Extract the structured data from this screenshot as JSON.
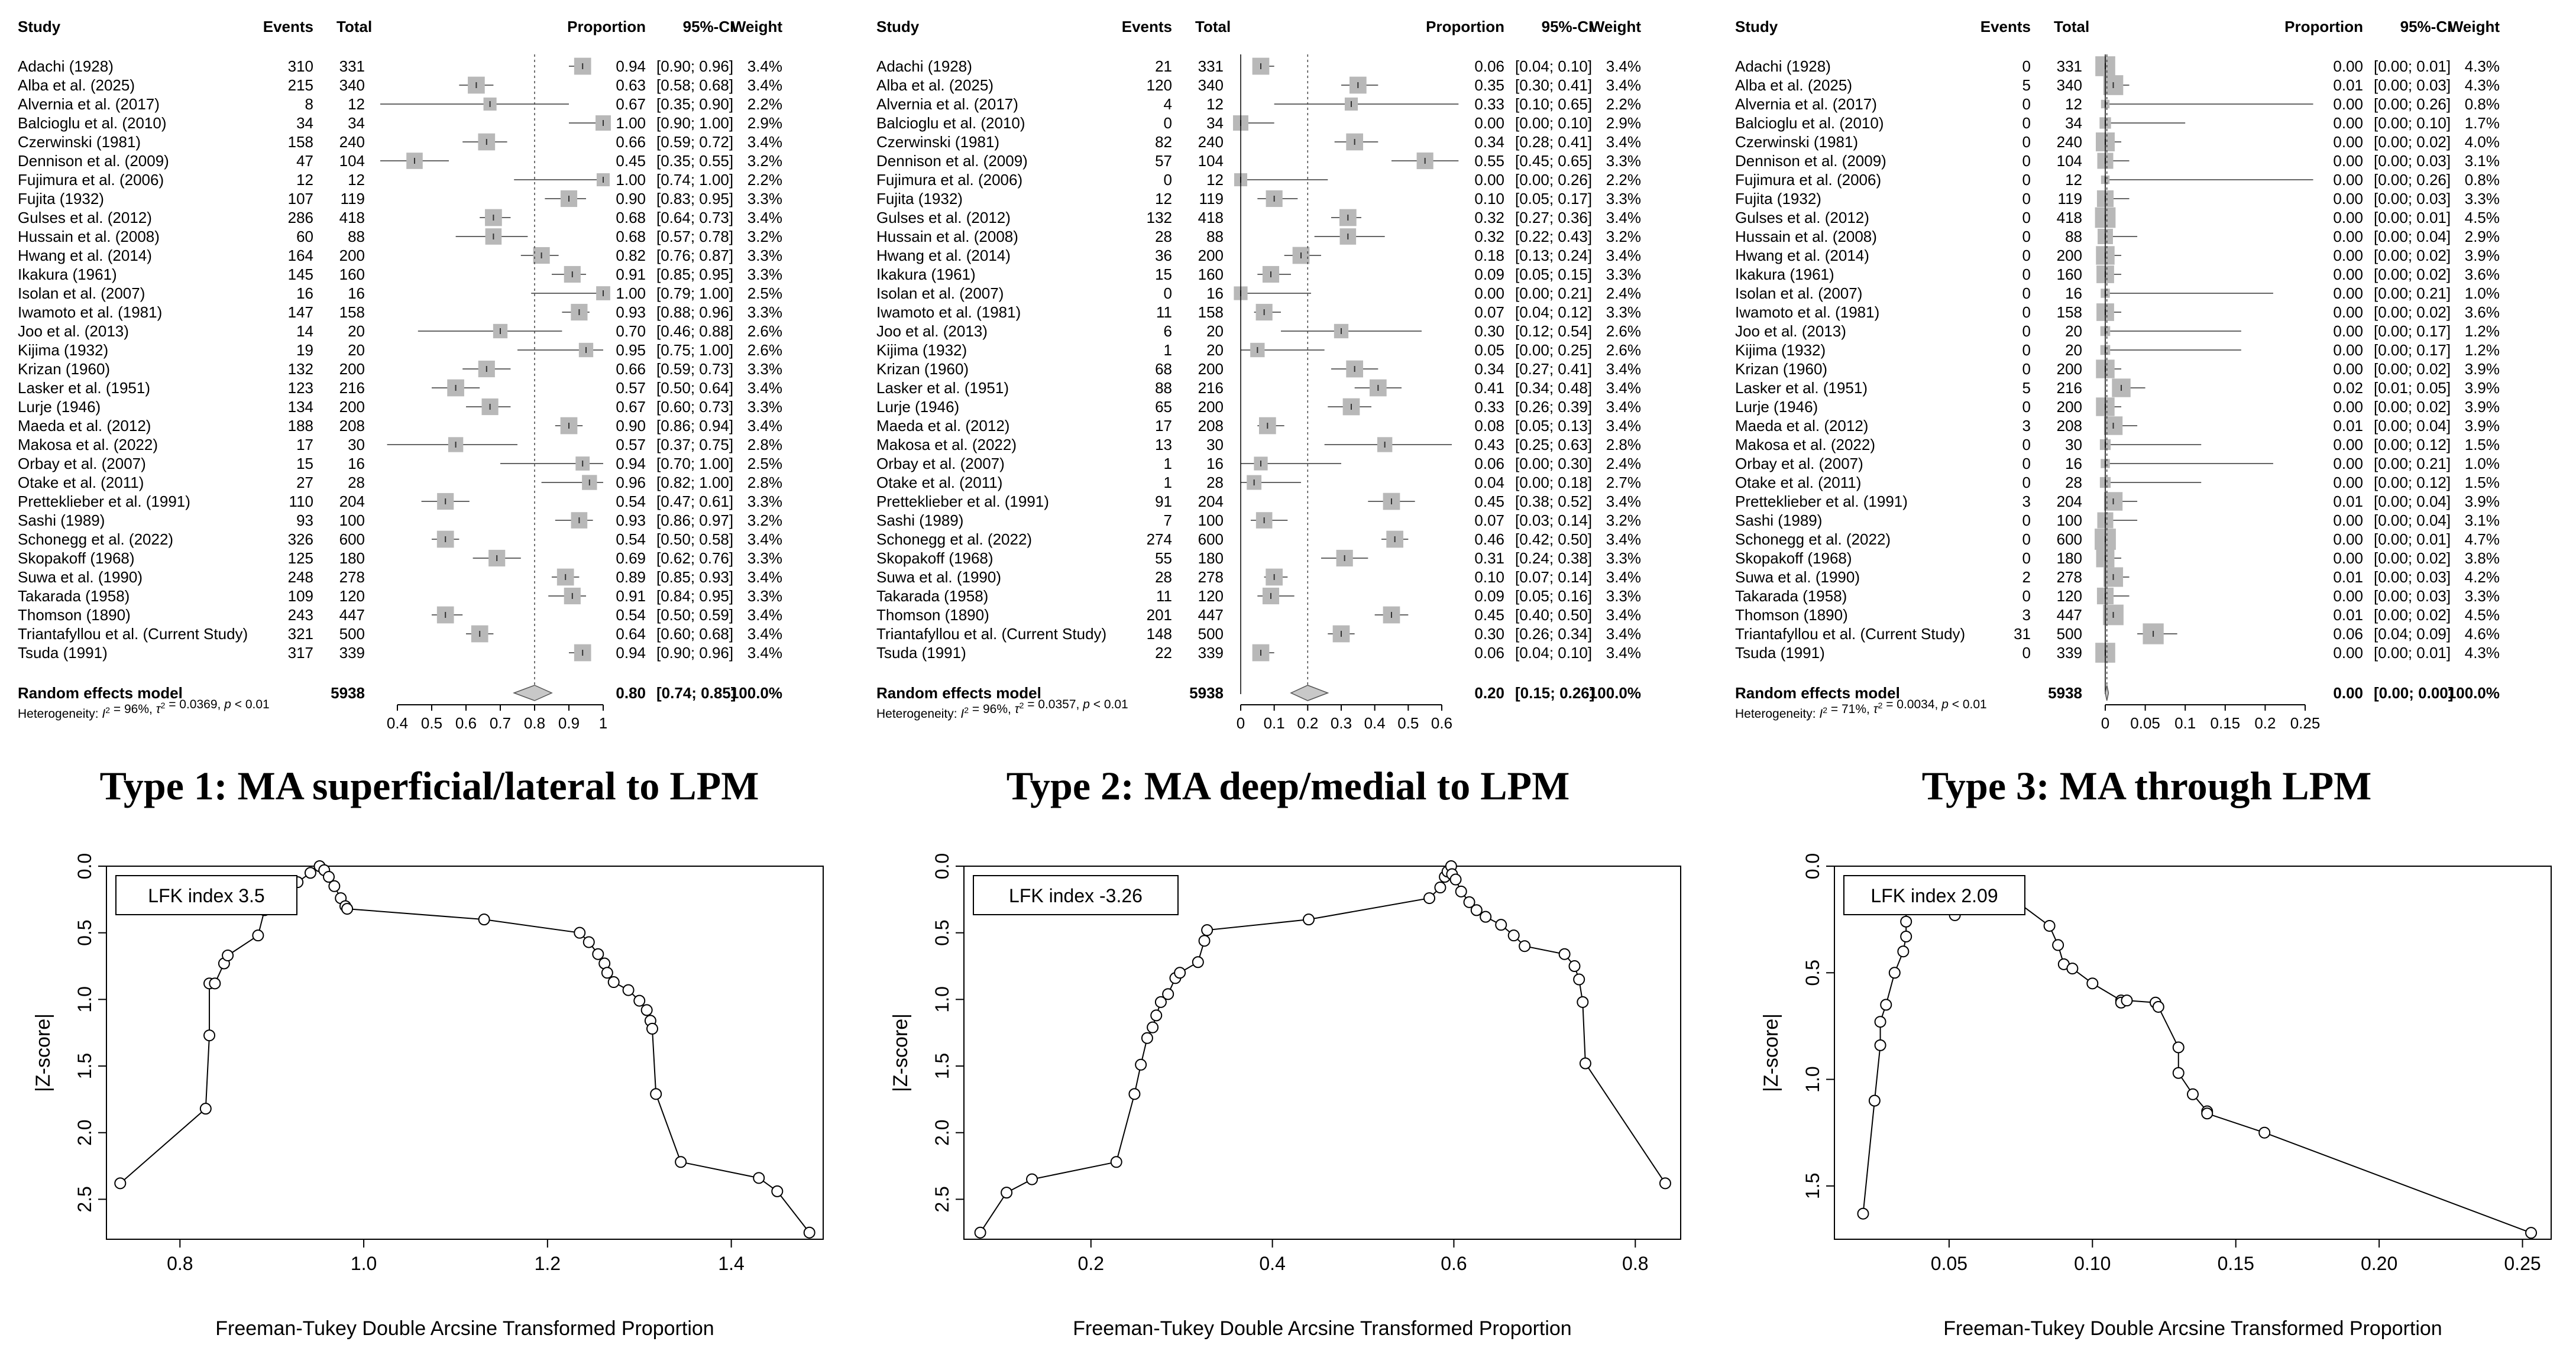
{
  "captions": [
    "Type 1: MA superficial/lateral to LPM",
    "Type 2: MA deep/medial to LPM",
    "Type 3: MA through LPM"
  ],
  "chart_data": [
    {
      "type": "forest",
      "headers": {
        "study": "Study",
        "events": "Events",
        "total": "Total",
        "proportion": "Proportion",
        "ci": "95%-CI",
        "weight": "Weight"
      },
      "studies": [
        "Adachi (1928)",
        "Alba et al. (2025)",
        "Alvernia et al. (2017)",
        "Balcioglu et al. (2010)",
        "Czerwinski (1981)",
        "Dennison et al. (2009)",
        "Fujimura et al. (2006)",
        "Fujita (1932)",
        "Gulses et al. (2012)",
        "Hussain et al. (2008)",
        "Hwang et al. (2014)",
        "Ikakura (1961)",
        "Isolan et al. (2007)",
        "Iwamoto et al. (1981)",
        "Joo et al. (2013)",
        "Kijima (1932)",
        "Krizan (1960)",
        "Lasker et al. (1951)",
        "Lurje (1946)",
        "Maeda et al. (2012)",
        "Makosa et al. (2022)",
        "Orbay et al. (2007)",
        "Otake et al. (2011)",
        "Pretteklieber et al. (1991)",
        "Sashi (1989)",
        "Schonegg et al. (2022)",
        "Skopakoff (1968)",
        "Suwa et al. (1990)",
        "Takarada (1958)",
        "Thomson (1890)",
        "Triantafyllou et al. (Current Study)",
        "Tsuda (1991)"
      ],
      "events": [
        "310",
        "215",
        "8",
        "34",
        "158",
        "47",
        "12",
        "107",
        "286",
        "60",
        "164",
        "145",
        "16",
        "147",
        "14",
        "19",
        "132",
        "123",
        "134",
        "188",
        "17",
        "15",
        "27",
        "110",
        "93",
        "326",
        "125",
        "248",
        "109",
        "243",
        "321",
        "317"
      ],
      "totals": [
        "331",
        "340",
        "12",
        "34",
        "240",
        "104",
        "12",
        "119",
        "418",
        "88",
        "200",
        "160",
        "16",
        "158",
        "20",
        "20",
        "200",
        "216",
        "200",
        "208",
        "30",
        "16",
        "28",
        "204",
        "100",
        "600",
        "180",
        "278",
        "120",
        "447",
        "500",
        "339"
      ],
      "props": [
        "0.94",
        "0.63",
        "0.67",
        "1.00",
        "0.66",
        "0.45",
        "1.00",
        "0.90",
        "0.68",
        "0.68",
        "0.82",
        "0.91",
        "1.00",
        "0.93",
        "0.70",
        "0.95",
        "0.66",
        "0.57",
        "0.67",
        "0.90",
        "0.57",
        "0.94",
        "0.96",
        "0.54",
        "0.93",
        "0.54",
        "0.69",
        "0.89",
        "0.91",
        "0.54",
        "0.64",
        "0.94"
      ],
      "cis": [
        "[0.90; 0.96]",
        "[0.58; 0.68]",
        "[0.35; 0.90]",
        "[0.90; 1.00]",
        "[0.59; 0.72]",
        "[0.35; 0.55]",
        "[0.74; 1.00]",
        "[0.83; 0.95]",
        "[0.64; 0.73]",
        "[0.57; 0.78]",
        "[0.76; 0.87]",
        "[0.85; 0.95]",
        "[0.79; 1.00]",
        "[0.88; 0.96]",
        "[0.46; 0.88]",
        "[0.75; 1.00]",
        "[0.59; 0.73]",
        "[0.50; 0.64]",
        "[0.60; 0.73]",
        "[0.86; 0.94]",
        "[0.37; 0.75]",
        "[0.70; 1.00]",
        "[0.82; 1.00]",
        "[0.47; 0.61]",
        "[0.86; 0.97]",
        "[0.50; 0.58]",
        "[0.62; 0.76]",
        "[0.85; 0.93]",
        "[0.84; 0.95]",
        "[0.50; 0.59]",
        "[0.60; 0.68]",
        "[0.90; 0.96]"
      ],
      "weights": [
        "3.4%",
        "3.4%",
        "2.2%",
        "2.9%",
        "3.4%",
        "3.2%",
        "2.2%",
        "3.3%",
        "3.4%",
        "3.2%",
        "3.3%",
        "3.3%",
        "2.5%",
        "3.3%",
        "2.6%",
        "2.6%",
        "3.3%",
        "3.4%",
        "3.3%",
        "3.4%",
        "2.8%",
        "2.5%",
        "2.8%",
        "3.3%",
        "3.2%",
        "3.4%",
        "3.3%",
        "3.4%",
        "3.3%",
        "3.4%",
        "3.4%",
        "3.4%"
      ],
      "pooled": {
        "label": "Random effects model",
        "total": "5938",
        "prop": "0.80",
        "ci": "[0.74; 0.85]",
        "weight": "100.0%",
        "value": 0.8,
        "lo": 0.74,
        "hi": 0.85
      },
      "heterogeneity": {
        "prefix": "Heterogeneity:",
        "i2": "= 96%,",
        "tau2": "= 0.0369,",
        "p": "< 0.01"
      },
      "axis": {
        "min": 0.4,
        "max": 1,
        "ticks": [
          "0.4",
          "0.5",
          "0.6",
          "0.7",
          "0.8",
          "0.9",
          "1"
        ]
      }
    },
    {
      "type": "forest",
      "headers": {
        "study": "Study",
        "events": "Events",
        "total": "Total",
        "proportion": "Proportion",
        "ci": "95%-CI",
        "weight": "Weight"
      },
      "studies": [
        "Adachi (1928)",
        "Alba et al. (2025)",
        "Alvernia et al. (2017)",
        "Balcioglu et al. (2010)",
        "Czerwinski (1981)",
        "Dennison et al. (2009)",
        "Fujimura et al. (2006)",
        "Fujita (1932)",
        "Gulses et al. (2012)",
        "Hussain et al. (2008)",
        "Hwang et al. (2014)",
        "Ikakura (1961)",
        "Isolan et al. (2007)",
        "Iwamoto et al. (1981)",
        "Joo et al. (2013)",
        "Kijima (1932)",
        "Krizan (1960)",
        "Lasker et al. (1951)",
        "Lurje (1946)",
        "Maeda et al. (2012)",
        "Makosa et al. (2022)",
        "Orbay et al. (2007)",
        "Otake et al. (2011)",
        "Pretteklieber et al. (1991)",
        "Sashi (1989)",
        "Schonegg et al. (2022)",
        "Skopakoff (1968)",
        "Suwa et al. (1990)",
        "Takarada (1958)",
        "Thomson (1890)",
        "Triantafyllou et al. (Current Study)",
        "Tsuda (1991)"
      ],
      "events": [
        "21",
        "120",
        "4",
        "0",
        "82",
        "57",
        "0",
        "12",
        "132",
        "28",
        "36",
        "15",
        "0",
        "11",
        "6",
        "1",
        "68",
        "88",
        "65",
        "17",
        "13",
        "1",
        "1",
        "91",
        "7",
        "274",
        "55",
        "28",
        "11",
        "201",
        "148",
        "22"
      ],
      "totals": [
        "331",
        "340",
        "12",
        "34",
        "240",
        "104",
        "12",
        "119",
        "418",
        "88",
        "200",
        "160",
        "16",
        "158",
        "20",
        "20",
        "200",
        "216",
        "200",
        "208",
        "30",
        "16",
        "28",
        "204",
        "100",
        "600",
        "180",
        "278",
        "120",
        "447",
        "500",
        "339"
      ],
      "props": [
        "0.06",
        "0.35",
        "0.33",
        "0.00",
        "0.34",
        "0.55",
        "0.00",
        "0.10",
        "0.32",
        "0.32",
        "0.18",
        "0.09",
        "0.00",
        "0.07",
        "0.30",
        "0.05",
        "0.34",
        "0.41",
        "0.33",
        "0.08",
        "0.43",
        "0.06",
        "0.04",
        "0.45",
        "0.07",
        "0.46",
        "0.31",
        "0.10",
        "0.09",
        "0.45",
        "0.30",
        "0.06"
      ],
      "cis": [
        "[0.04; 0.10]",
        "[0.30; 0.41]",
        "[0.10; 0.65]",
        "[0.00; 0.10]",
        "[0.28; 0.41]",
        "[0.45; 0.65]",
        "[0.00; 0.26]",
        "[0.05; 0.17]",
        "[0.27; 0.36]",
        "[0.22; 0.43]",
        "[0.13; 0.24]",
        "[0.05; 0.15]",
        "[0.00; 0.21]",
        "[0.04; 0.12]",
        "[0.12; 0.54]",
        "[0.00; 0.25]",
        "[0.27; 0.41]",
        "[0.34; 0.48]",
        "[0.26; 0.39]",
        "[0.05; 0.13]",
        "[0.25; 0.63]",
        "[0.00; 0.30]",
        "[0.00; 0.18]",
        "[0.38; 0.52]",
        "[0.03; 0.14]",
        "[0.42; 0.50]",
        "[0.24; 0.38]",
        "[0.07; 0.14]",
        "[0.05; 0.16]",
        "[0.40; 0.50]",
        "[0.26; 0.34]",
        "[0.04; 0.10]"
      ],
      "weights": [
        "3.4%",
        "3.4%",
        "2.2%",
        "2.9%",
        "3.4%",
        "3.3%",
        "2.2%",
        "3.3%",
        "3.4%",
        "3.2%",
        "3.4%",
        "3.3%",
        "2.4%",
        "3.3%",
        "2.6%",
        "2.6%",
        "3.4%",
        "3.4%",
        "3.4%",
        "3.4%",
        "2.8%",
        "2.4%",
        "2.7%",
        "3.4%",
        "3.2%",
        "3.4%",
        "3.3%",
        "3.4%",
        "3.3%",
        "3.4%",
        "3.4%",
        "3.4%"
      ],
      "pooled": {
        "label": "Random effects model",
        "total": "5938",
        "prop": "0.20",
        "ci": "[0.15; 0.26]",
        "weight": "100.0%",
        "value": 0.2,
        "lo": 0.15,
        "hi": 0.26
      },
      "heterogeneity": {
        "prefix": "Heterogeneity:",
        "i2": "= 96%,",
        "tau2": "= 0.0357,",
        "p": "< 0.01"
      },
      "axis": {
        "min": 0,
        "max": 0.6,
        "ticks": [
          "0",
          "0.1",
          "0.2",
          "0.3",
          "0.4",
          "0.5",
          "0.6"
        ]
      }
    },
    {
      "type": "forest",
      "headers": {
        "study": "Study",
        "events": "Events",
        "total": "Total",
        "proportion": "Proportion",
        "ci": "95%-CI",
        "weight": "Weight"
      },
      "studies": [
        "Adachi (1928)",
        "Alba et al. (2025)",
        "Alvernia et al. (2017)",
        "Balcioglu et al. (2010)",
        "Czerwinski (1981)",
        "Dennison et al. (2009)",
        "Fujimura et al. (2006)",
        "Fujita (1932)",
        "Gulses et al. (2012)",
        "Hussain et al. (2008)",
        "Hwang et al. (2014)",
        "Ikakura (1961)",
        "Isolan et al. (2007)",
        "Iwamoto et al. (1981)",
        "Joo et al. (2013)",
        "Kijima (1932)",
        "Krizan (1960)",
        "Lasker et al. (1951)",
        "Lurje (1946)",
        "Maeda et al. (2012)",
        "Makosa et al. (2022)",
        "Orbay et al. (2007)",
        "Otake et al. (2011)",
        "Pretteklieber et al. (1991)",
        "Sashi (1989)",
        "Schonegg et al. (2022)",
        "Skopakoff (1968)",
        "Suwa et al. (1990)",
        "Takarada (1958)",
        "Thomson (1890)",
        "Triantafyllou et al. (Current Study)",
        "Tsuda (1991)"
      ],
      "events": [
        "0",
        "5",
        "0",
        "0",
        "0",
        "0",
        "0",
        "0",
        "0",
        "0",
        "0",
        "0",
        "0",
        "0",
        "0",
        "0",
        "0",
        "5",
        "0",
        "3",
        "0",
        "0",
        "0",
        "3",
        "0",
        "0",
        "0",
        "2",
        "0",
        "3",
        "31",
        "0"
      ],
      "totals": [
        "331",
        "340",
        "12",
        "34",
        "240",
        "104",
        "12",
        "119",
        "418",
        "88",
        "200",
        "160",
        "16",
        "158",
        "20",
        "20",
        "200",
        "216",
        "200",
        "208",
        "30",
        "16",
        "28",
        "204",
        "100",
        "600",
        "180",
        "278",
        "120",
        "447",
        "500",
        "339"
      ],
      "props": [
        "0.00",
        "0.01",
        "0.00",
        "0.00",
        "0.00",
        "0.00",
        "0.00",
        "0.00",
        "0.00",
        "0.00",
        "0.00",
        "0.00",
        "0.00",
        "0.00",
        "0.00",
        "0.00",
        "0.00",
        "0.02",
        "0.00",
        "0.01",
        "0.00",
        "0.00",
        "0.00",
        "0.01",
        "0.00",
        "0.00",
        "0.00",
        "0.01",
        "0.00",
        "0.01",
        "0.06",
        "0.00"
      ],
      "cis": [
        "[0.00; 0.01]",
        "[0.00; 0.03]",
        "[0.00; 0.26]",
        "[0.00; 0.10]",
        "[0.00; 0.02]",
        "[0.00; 0.03]",
        "[0.00; 0.26]",
        "[0.00; 0.03]",
        "[0.00; 0.01]",
        "[0.00; 0.04]",
        "[0.00; 0.02]",
        "[0.00; 0.02]",
        "[0.00; 0.21]",
        "[0.00; 0.02]",
        "[0.00; 0.17]",
        "[0.00; 0.17]",
        "[0.00; 0.02]",
        "[0.01; 0.05]",
        "[0.00; 0.02]",
        "[0.00; 0.04]",
        "[0.00; 0.12]",
        "[0.00; 0.21]",
        "[0.00; 0.12]",
        "[0.00; 0.04]",
        "[0.00; 0.04]",
        "[0.00; 0.01]",
        "[0.00; 0.02]",
        "[0.00; 0.03]",
        "[0.00; 0.03]",
        "[0.00; 0.02]",
        "[0.04; 0.09]",
        "[0.00; 0.01]"
      ],
      "weights": [
        "4.3%",
        "4.3%",
        "0.8%",
        "1.7%",
        "4.0%",
        "3.1%",
        "0.8%",
        "3.3%",
        "4.5%",
        "2.9%",
        "3.9%",
        "3.6%",
        "1.0%",
        "3.6%",
        "1.2%",
        "1.2%",
        "3.9%",
        "3.9%",
        "3.9%",
        "3.9%",
        "1.5%",
        "1.0%",
        "1.5%",
        "3.9%",
        "3.1%",
        "4.7%",
        "3.8%",
        "4.2%",
        "3.3%",
        "4.5%",
        "4.6%",
        "4.3%"
      ],
      "pooled": {
        "label": "Random effects model",
        "total": "5938",
        "prop": "0.00",
        "ci": "[0.00; 0.00]",
        "weight": "100.0%",
        "value": 0.002,
        "lo": 0.0,
        "hi": 0.004
      },
      "heterogeneity": {
        "prefix": "Heterogeneity:",
        "i2": "= 71%,",
        "tau2": "= 0.0034,",
        "p": "< 0.01"
      },
      "axis": {
        "min": 0,
        "max": 0.25,
        "ticks": [
          "0",
          "0.05",
          "0.1",
          "0.15",
          "0.2",
          "0.25"
        ]
      }
    },
    {
      "type": "line",
      "title": "LFK index 3.5",
      "xlabel": "Freeman-Tukey Double Arcsine Transformed Proportion",
      "ylabel": "|Z-score|",
      "xlim": [
        0.72,
        1.5
      ],
      "ylim": [
        0,
        2.8
      ],
      "xticks": [
        "0.8",
        "1.0",
        "1.2",
        "1.4"
      ],
      "yticks": [
        "0.0",
        "0.5",
        "1.0",
        "1.5",
        "2.0",
        "2.5"
      ],
      "x": [
        0.735,
        0.828,
        0.832,
        0.832,
        0.838,
        0.848,
        0.852,
        0.885,
        0.892,
        0.902,
        0.915,
        0.928,
        0.942,
        0.952,
        0.957,
        0.962,
        0.968,
        0.975,
        0.98,
        0.982,
        1.131,
        1.235,
        1.245,
        1.255,
        1.262,
        1.265,
        1.272,
        1.288,
        1.3,
        1.308,
        1.312,
        1.314,
        1.318,
        1.345,
        1.43,
        1.45,
        1.485
      ],
      "y": [
        2.38,
        1.82,
        1.27,
        0.88,
        0.88,
        0.73,
        0.67,
        0.52,
        0.33,
        0.26,
        0.18,
        0.12,
        0.05,
        0.0,
        0.03,
        0.08,
        0.15,
        0.24,
        0.3,
        0.32,
        0.4,
        0.5,
        0.57,
        0.66,
        0.73,
        0.8,
        0.87,
        0.93,
        1.01,
        1.08,
        1.16,
        1.22,
        1.71,
        2.22,
        2.34,
        2.44,
        2.75
      ]
    },
    {
      "type": "line",
      "title": "LFK index -3.26",
      "xlabel": "Freeman-Tukey Double Arcsine Transformed Proportion",
      "ylabel": "|Z-score|",
      "xlim": [
        0.06,
        0.85
      ],
      "ylim": [
        0,
        2.8
      ],
      "xticks": [
        "0.2",
        "0.4",
        "0.6",
        "0.8"
      ],
      "yticks": [
        "0.0",
        "0.5",
        "1.0",
        "1.5",
        "2.0",
        "2.5"
      ],
      "x": [
        0.078,
        0.107,
        0.135,
        0.228,
        0.248,
        0.255,
        0.262,
        0.268,
        0.272,
        0.277,
        0.285,
        0.293,
        0.298,
        0.318,
        0.325,
        0.328,
        0.44,
        0.573,
        0.585,
        0.59,
        0.593,
        0.597,
        0.598,
        0.602,
        0.608,
        0.617,
        0.625,
        0.635,
        0.652,
        0.666,
        0.678,
        0.722,
        0.733,
        0.738,
        0.742,
        0.745,
        0.833
      ],
      "y": [
        2.75,
        2.45,
        2.35,
        2.22,
        1.71,
        1.49,
        1.29,
        1.21,
        1.12,
        1.02,
        0.96,
        0.84,
        0.8,
        0.72,
        0.56,
        0.48,
        0.4,
        0.24,
        0.16,
        0.08,
        0.04,
        0.0,
        0.06,
        0.1,
        0.19,
        0.27,
        0.33,
        0.38,
        0.44,
        0.52,
        0.6,
        0.66,
        0.75,
        0.85,
        1.02,
        1.48,
        2.38
      ]
    },
    {
      "type": "line",
      "title": "LFK index 2.09",
      "xlabel": "Freeman-Tukey Double Arcsine Transformed Proportion",
      "ylabel": "|Z-score|",
      "xlim": [
        0.01,
        0.26
      ],
      "ylim": [
        0,
        1.75
      ],
      "xticks": [
        "0.05",
        "0.10",
        "0.15",
        "0.20",
        "0.25"
      ],
      "yticks": [
        "0.0",
        "0.5",
        "1.0",
        "1.5"
      ],
      "x": [
        0.02,
        0.024,
        0.026,
        0.026,
        0.028,
        0.031,
        0.034,
        0.035,
        0.035,
        0.035,
        0.036,
        0.05,
        0.052,
        0.055,
        0.06,
        0.065,
        0.085,
        0.088,
        0.09,
        0.093,
        0.1,
        0.11,
        0.11,
        0.112,
        0.122,
        0.123,
        0.13,
        0.13,
        0.135,
        0.14,
        0.14,
        0.16,
        0.253
      ],
      "y": [
        1.63,
        1.1,
        0.84,
        0.73,
        0.65,
        0.5,
        0.4,
        0.33,
        0.26,
        0.2,
        0.15,
        0.2,
        0.23,
        0.14,
        0.08,
        0.08,
        0.28,
        0.37,
        0.46,
        0.48,
        0.55,
        0.63,
        0.64,
        0.63,
        0.64,
        0.66,
        0.85,
        0.97,
        1.07,
        1.15,
        1.16,
        1.25,
        1.72
      ]
    }
  ]
}
